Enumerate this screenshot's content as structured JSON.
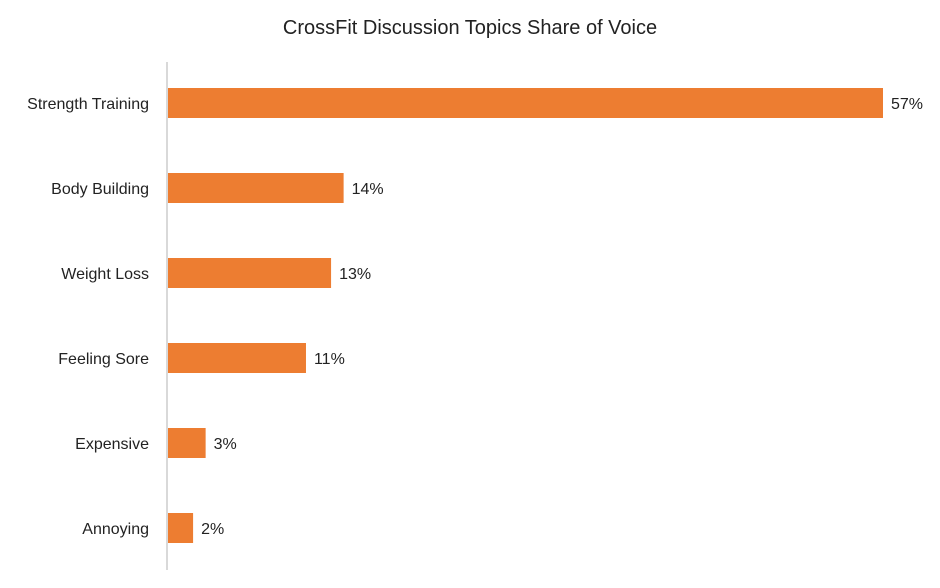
{
  "chart_data": {
    "type": "bar",
    "orientation": "horizontal",
    "title": "CrossFit Discussion Topics Share of Voice",
    "categories": [
      "Strength Training",
      "Body Building",
      "Weight Loss",
      "Feeling Sore",
      "Expensive",
      "Annoying"
    ],
    "values": [
      57,
      14,
      13,
      11,
      3,
      2
    ],
    "value_labels": [
      "57%",
      "14%",
      "13%",
      "11%",
      "3%",
      "2%"
    ],
    "unit": "%",
    "xlabel": "",
    "ylabel": "",
    "xlim": [
      0,
      57
    ],
    "grid": false,
    "legend": "none",
    "bar_color": "#ED7D31"
  }
}
